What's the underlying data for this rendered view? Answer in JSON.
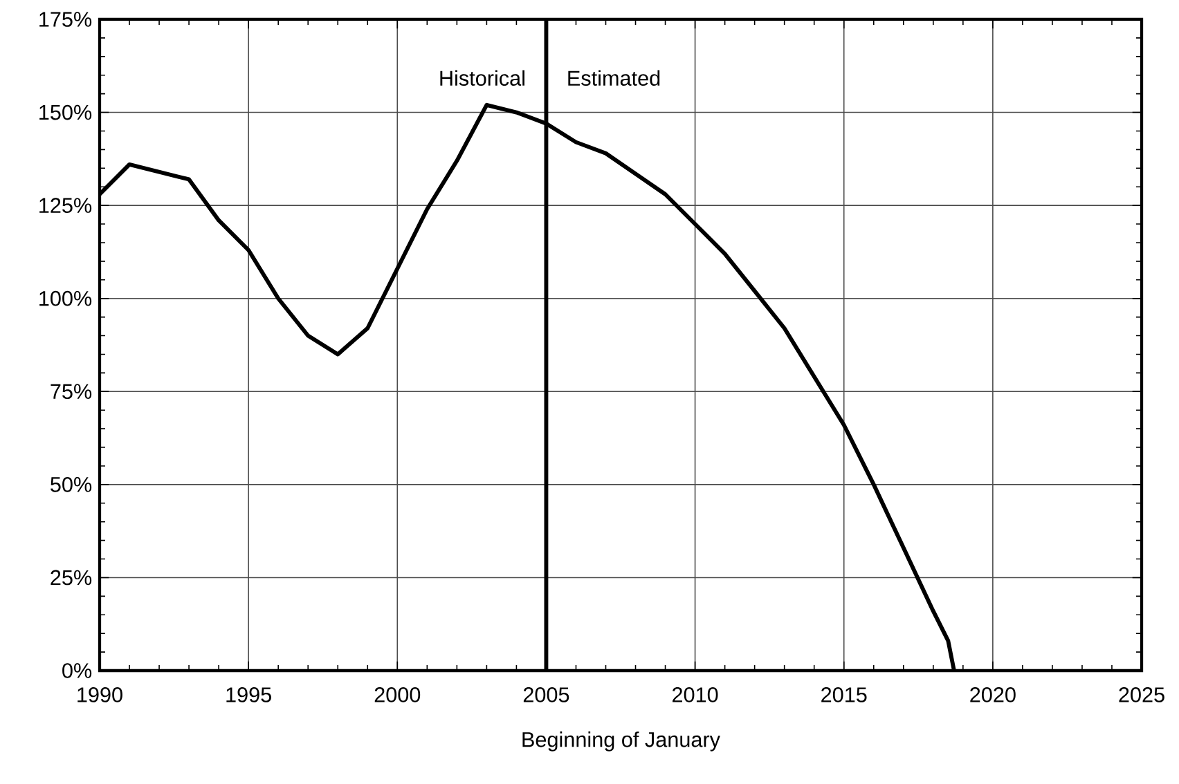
{
  "chart_data": {
    "type": "line",
    "xlabel": "Beginning of January",
    "x": [
      1990,
      1991,
      1993,
      1994,
      1995,
      1996,
      1997,
      1998,
      1999,
      2000,
      2001,
      2002,
      2003,
      2004,
      2005,
      2006,
      2007,
      2009,
      2010,
      2011,
      2012,
      2013,
      2015,
      2016,
      2017,
      2018,
      2018.5,
      2018.7
    ],
    "series": [
      {
        "color": "#000000",
        "values": [
          128,
          136,
          132,
          121,
          113,
          100,
          90,
          85,
          92,
          108,
          124,
          137,
          152,
          150,
          147,
          142,
          139,
          128,
          120,
          112,
          102,
          92,
          66,
          50,
          33,
          16,
          8,
          0
        ]
      }
    ],
    "xlim": [
      1990,
      2025
    ],
    "xticks": [
      1990,
      1995,
      2000,
      2005,
      2010,
      2015,
      2020,
      2025
    ],
    "ylim": [
      0,
      175
    ],
    "yticks": [
      {
        "value": 0,
        "label": "0%"
      },
      {
        "value": 25,
        "label": "25%"
      },
      {
        "value": 50,
        "label": "50%"
      },
      {
        "value": 75,
        "label": "75%"
      },
      {
        "value": 100,
        "label": "100%"
      },
      {
        "value": 125,
        "label": "125%"
      },
      {
        "value": 150,
        "label": "150%"
      },
      {
        "value": 175,
        "label": "175%"
      }
    ],
    "ref_lines": [
      {
        "axis": "x",
        "value": 2005,
        "color": "#000000"
      }
    ],
    "annotations": [
      "Historical",
      "Estimated"
    ],
    "grid": true,
    "marker": "none",
    "line_style": "solid"
  }
}
